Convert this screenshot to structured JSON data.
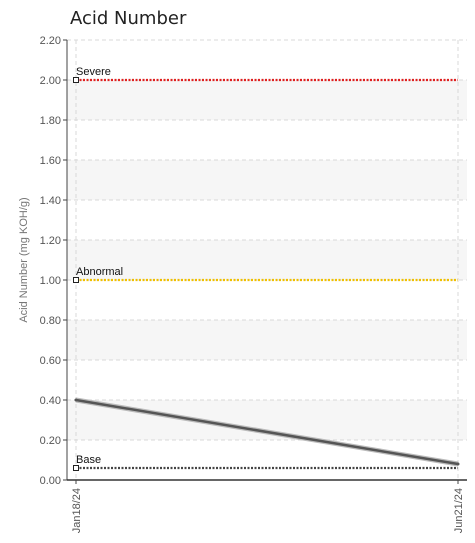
{
  "chart_data": {
    "type": "line",
    "title": "Acid Number",
    "ylabel": "Acid Number (mg KOH/g)",
    "xlabel": "",
    "ylim": [
      0,
      2.2
    ],
    "yticks": [
      "0.00",
      "0.20",
      "0.40",
      "0.60",
      "0.80",
      "1.00",
      "1.20",
      "1.40",
      "1.60",
      "1.80",
      "2.00",
      "2.20"
    ],
    "x": [
      "Jan18/24",
      "Jun21/24"
    ],
    "series": [
      {
        "values": [
          0.4,
          0.08
        ],
        "color": "#555555"
      }
    ],
    "thresholds": [
      {
        "name": "Severe",
        "value": 2.0,
        "color": "#e02020"
      },
      {
        "name": "Abnormal",
        "value": 1.0,
        "color": "#f0c000"
      },
      {
        "name": "Base",
        "value": 0.06,
        "color": "#444444"
      }
    ],
    "grid": true,
    "legend": "none"
  }
}
